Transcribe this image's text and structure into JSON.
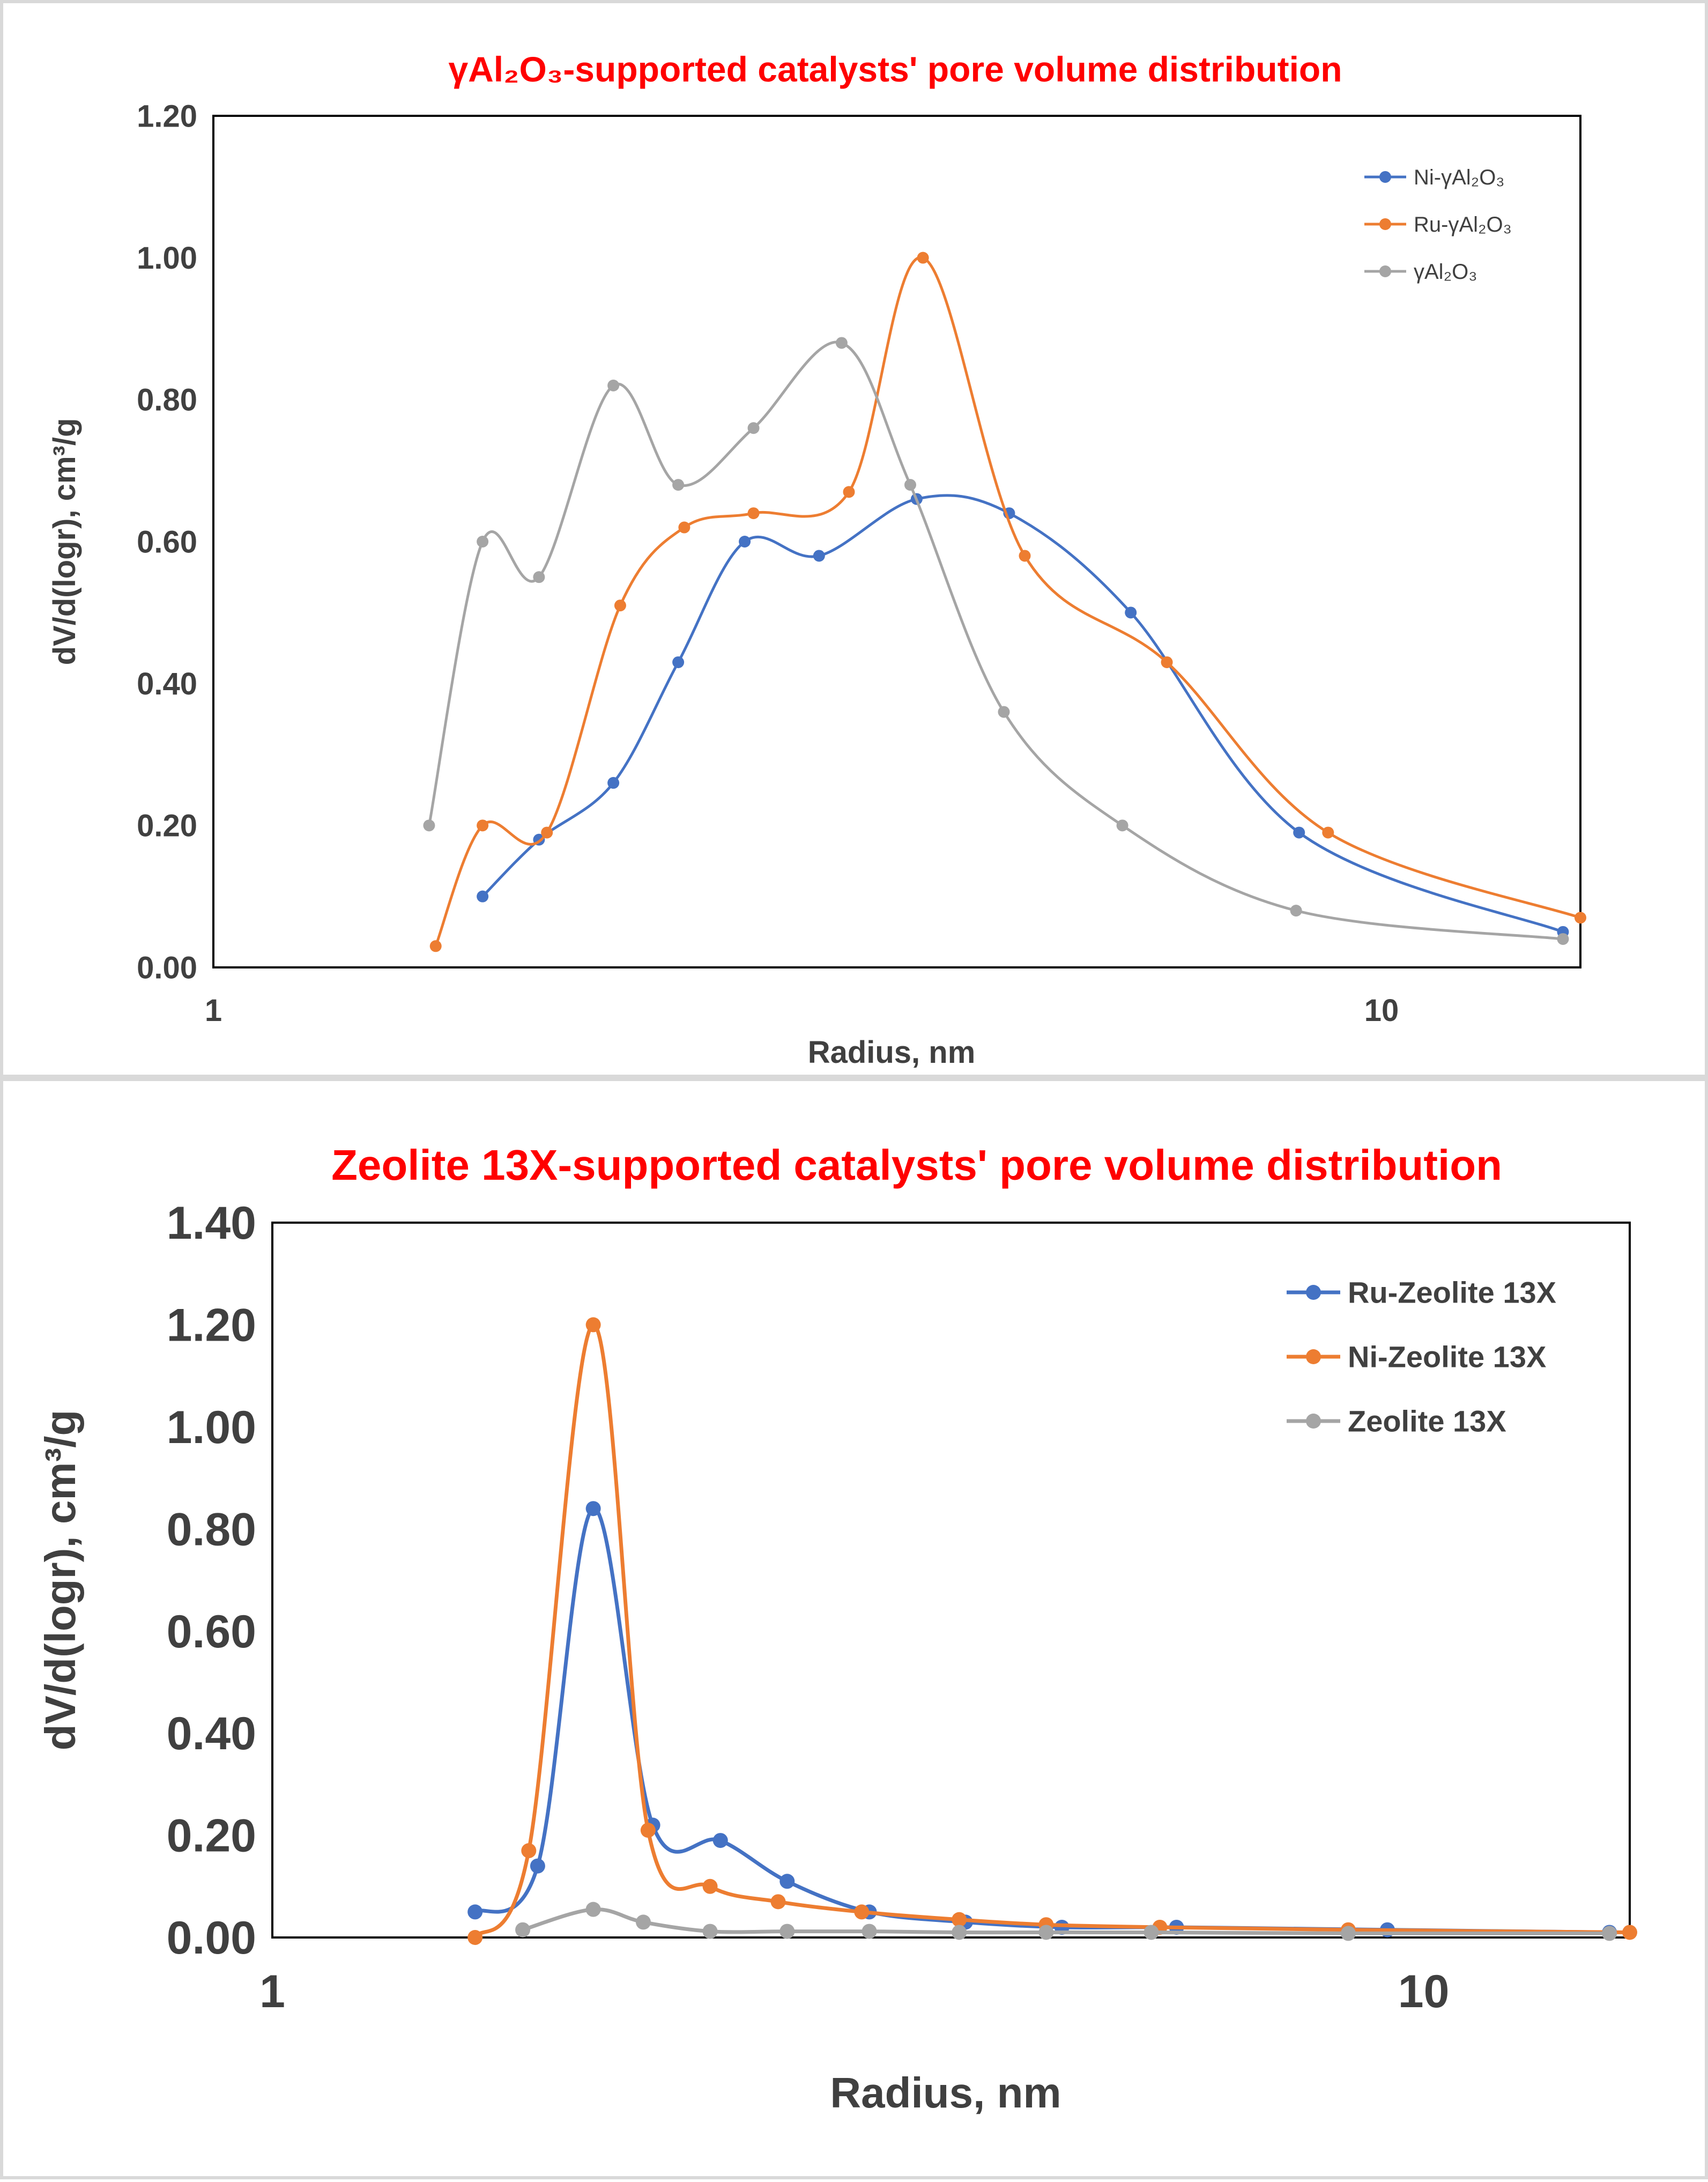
{
  "chart_data": [
    {
      "type": "line",
      "title": "γAl₂O₃-supported catalysts' pore volume distribution",
      "title_color": "#ff0000",
      "xlabel": "Radius, nm",
      "ylabel": "dV/d(logr), cm³/g",
      "x_scale": "log",
      "xlim": [
        1,
        14.8
      ],
      "ylim": [
        0,
        1.2
      ],
      "x_ticks": [
        1,
        10
      ],
      "x_tick_labels": [
        "1",
        "10"
      ],
      "y_ticks": [
        0,
        0.2,
        0.4,
        0.6,
        0.8,
        1.0,
        1.2
      ],
      "y_tick_labels": [
        "0.00",
        "0.20",
        "0.40",
        "0.60",
        "0.80",
        "1.00",
        "1.20"
      ],
      "grid": false,
      "legend_position": "top-right",
      "series": [
        {
          "name": "Ni-γAl₂O₃",
          "color": "#4472c4",
          "x": [
            1.7,
            1.9,
            2.2,
            2.5,
            2.85,
            3.3,
            4.0,
            4.8,
            6.1,
            8.5,
            14.3
          ],
          "y": [
            0.1,
            0.18,
            0.26,
            0.43,
            0.6,
            0.58,
            0.66,
            0.64,
            0.5,
            0.19,
            0.05
          ]
        },
        {
          "name": "Ru-γAl₂O₃",
          "color": "#ed7d31",
          "x": [
            1.55,
            1.7,
            1.93,
            2.23,
            2.53,
            2.9,
            3.5,
            4.05,
            4.95,
            6.55,
            9.0,
            14.8
          ],
          "y": [
            0.03,
            0.2,
            0.19,
            0.51,
            0.62,
            0.64,
            0.67,
            1.0,
            0.58,
            0.43,
            0.19,
            0.07
          ]
        },
        {
          "name": "γAl₂O₃",
          "color": "#a5a5a5",
          "x": [
            1.53,
            1.7,
            1.9,
            2.2,
            2.5,
            2.9,
            3.45,
            3.95,
            4.75,
            6.0,
            8.45,
            14.3
          ],
          "y": [
            0.2,
            0.6,
            0.55,
            0.82,
            0.68,
            0.76,
            0.88,
            0.68,
            0.36,
            0.2,
            0.08,
            0.04
          ]
        }
      ]
    },
    {
      "type": "line",
      "title": "Zeolite 13X-supported catalysts' pore volume distribution",
      "title_color": "#ff0000",
      "xlabel": "Radius, nm",
      "ylabel": "dV/d(logr), cm³/g",
      "x_scale": "log",
      "xlim": [
        1,
        15.1
      ],
      "ylim": [
        0,
        1.4
      ],
      "x_ticks": [
        1,
        10
      ],
      "x_tick_labels": [
        "1",
        "10"
      ],
      "y_ticks": [
        0,
        0.2,
        0.4,
        0.6,
        0.8,
        1.0,
        1.2,
        1.4
      ],
      "y_tick_labels": [
        "0.00",
        "0.20",
        "0.40",
        "0.60",
        "0.80",
        "1.00",
        "1.20",
        "1.40"
      ],
      "grid": false,
      "legend_position": "top-right",
      "series": [
        {
          "name": "Ru-Zeolite 13X",
          "color": "#4472c4",
          "x": [
            1.5,
            1.7,
            1.9,
            2.14,
            2.45,
            2.8,
            3.3,
            4.0,
            4.85,
            6.1,
            9.3,
            14.5
          ],
          "y": [
            0.05,
            0.14,
            0.84,
            0.22,
            0.19,
            0.11,
            0.05,
            0.03,
            0.02,
            0.02,
            0.015,
            0.01
          ]
        },
        {
          "name": "Ni-Zeolite 13X",
          "color": "#ed7d31",
          "x": [
            1.5,
            1.67,
            1.9,
            2.12,
            2.4,
            2.75,
            3.25,
            3.95,
            4.7,
            5.9,
            8.6,
            15.1
          ],
          "y": [
            0.0,
            0.17,
            1.2,
            0.21,
            0.1,
            0.07,
            0.05,
            0.035,
            0.025,
            0.02,
            0.015,
            0.01
          ]
        },
        {
          "name": "Zeolite 13X",
          "color": "#a5a5a5",
          "x": [
            1.65,
            1.9,
            2.1,
            2.4,
            2.8,
            3.3,
            3.95,
            4.7,
            5.8,
            8.6,
            14.5
          ],
          "y": [
            0.015,
            0.055,
            0.03,
            0.012,
            0.012,
            0.012,
            0.01,
            0.01,
            0.01,
            0.008,
            0.008
          ]
        }
      ]
    }
  ]
}
